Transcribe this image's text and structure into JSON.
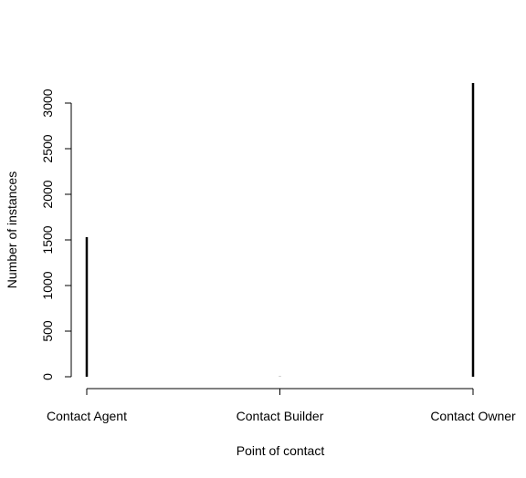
{
  "chart_data": {
    "type": "bar",
    "categories": [
      "Contact Agent",
      "Contact Builder",
      "Contact Owner"
    ],
    "values": [
      1530,
      2,
      3220
    ],
    "title": "",
    "xlabel": "Point of contact",
    "ylabel": "Number of instances",
    "ylim": [
      0,
      3220
    ],
    "yticks": [
      0,
      500,
      1000,
      1500,
      2000,
      2500,
      3000
    ],
    "grid": false,
    "legend": "none",
    "bar_color": "#000000"
  }
}
